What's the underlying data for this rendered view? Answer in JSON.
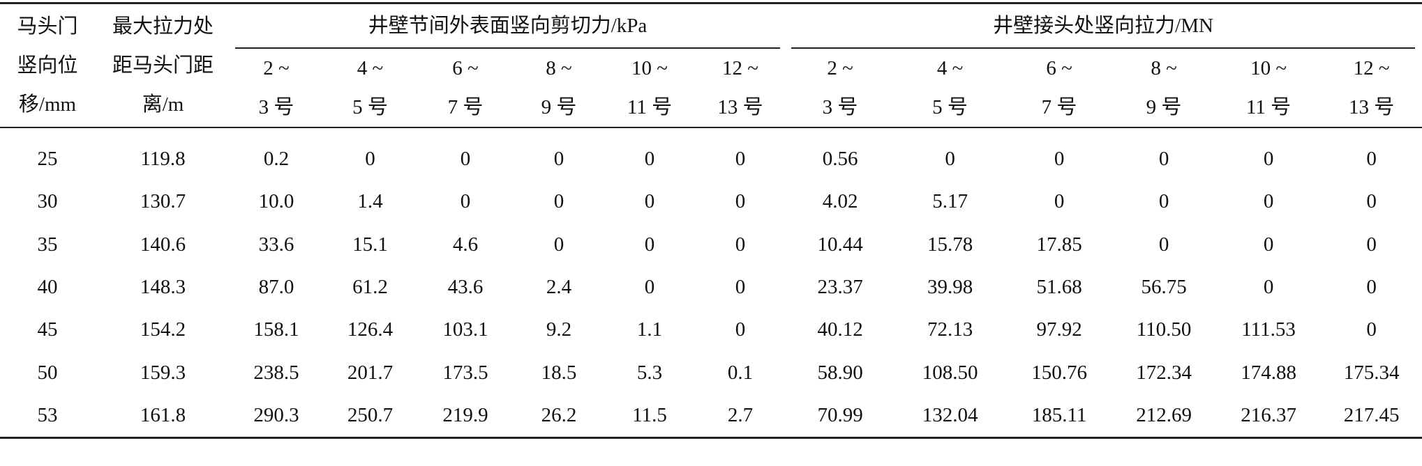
{
  "table": {
    "row_header": [
      [
        "马头门",
        "竖向位",
        "移/mm"
      ],
      [
        "最大拉力处",
        "距马头门距",
        "离/m"
      ]
    ],
    "groups": [
      "井壁节间外表面竖向剪切力/kPa",
      "井壁接头处竖向拉力/MN"
    ],
    "subcolumns": [
      [
        [
          "2 ~",
          "3 号"
        ],
        [
          "4 ~",
          "5 号"
        ],
        [
          "6 ~",
          "7 号"
        ],
        [
          "8 ~",
          "9 号"
        ],
        [
          "10 ~",
          "11 号"
        ],
        [
          "12 ~",
          "13 号"
        ]
      ],
      [
        [
          "2 ~",
          "3 号"
        ],
        [
          "4 ~",
          "5 号"
        ],
        [
          "6 ~",
          "7 号"
        ],
        [
          "8 ~",
          "9 号"
        ],
        [
          "10 ~",
          "11 号"
        ],
        [
          "12 ~",
          "13 号"
        ]
      ]
    ],
    "rows": [
      [
        "25",
        "119.8",
        "0.2",
        "0",
        "0",
        "0",
        "0",
        "0",
        "0.56",
        "0",
        "0",
        "0",
        "0",
        "0"
      ],
      [
        "30",
        "130.7",
        "10.0",
        "1.4",
        "0",
        "0",
        "0",
        "0",
        "4.02",
        "5.17",
        "0",
        "0",
        "0",
        "0"
      ],
      [
        "35",
        "140.6",
        "33.6",
        "15.1",
        "4.6",
        "0",
        "0",
        "0",
        "10.44",
        "15.78",
        "17.85",
        "0",
        "0",
        "0"
      ],
      [
        "40",
        "148.3",
        "87.0",
        "61.2",
        "43.6",
        "2.4",
        "0",
        "0",
        "23.37",
        "39.98",
        "51.68",
        "56.75",
        "0",
        "0"
      ],
      [
        "45",
        "154.2",
        "158.1",
        "126.4",
        "103.1",
        "9.2",
        "1.1",
        "0",
        "40.12",
        "72.13",
        "97.92",
        "110.50",
        "111.53",
        "0"
      ],
      [
        "50",
        "159.3",
        "238.5",
        "201.7",
        "173.5",
        "18.5",
        "5.3",
        "0.1",
        "58.90",
        "108.50",
        "150.76",
        "172.34",
        "174.88",
        "175.34"
      ],
      [
        "53",
        "161.8",
        "290.3",
        "250.7",
        "219.9",
        "26.2",
        "11.5",
        "2.7",
        "70.99",
        "132.04",
        "185.11",
        "212.69",
        "216.37",
        "217.45"
      ]
    ]
  }
}
